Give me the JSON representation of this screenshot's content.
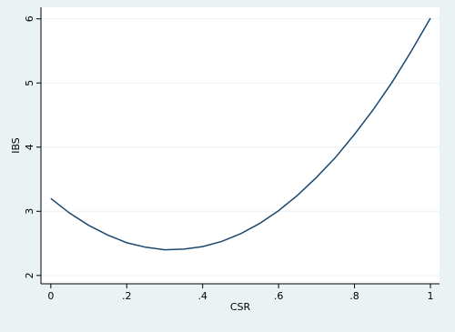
{
  "chart_data": {
    "type": "line",
    "x_label": "CSR",
    "y_label": "IBS",
    "x": [
      0,
      0.05,
      0.1,
      0.15,
      0.2,
      0.25,
      0.3,
      0.35,
      0.4,
      0.45,
      0.5,
      0.55,
      0.6,
      0.65,
      0.7,
      0.75,
      0.8,
      0.85,
      0.9,
      0.95,
      1
    ],
    "series": [
      {
        "color": "#1a476f",
        "values": [
          3.2,
          2.97,
          2.78,
          2.63,
          2.51,
          2.44,
          2.4,
          2.41,
          2.45,
          2.53,
          2.65,
          2.81,
          3.01,
          3.25,
          3.53,
          3.84,
          4.2,
          4.59,
          5.02,
          5.5,
          6.01
        ]
      }
    ],
    "xlim": [
      -0.026,
      1.024
    ],
    "xticks": [
      0,
      {
        "value": 0.2,
        "label": ".2"
      },
      {
        "value": 0.4,
        "label": ".4"
      },
      {
        "value": 0.6,
        "label": ".6"
      },
      {
        "value": 0.8,
        "label": ".8"
      },
      1
    ],
    "ylim": [
      1.87,
      6.18
    ],
    "yticks": [
      2,
      3,
      4,
      5,
      6
    ],
    "grid": true
  }
}
